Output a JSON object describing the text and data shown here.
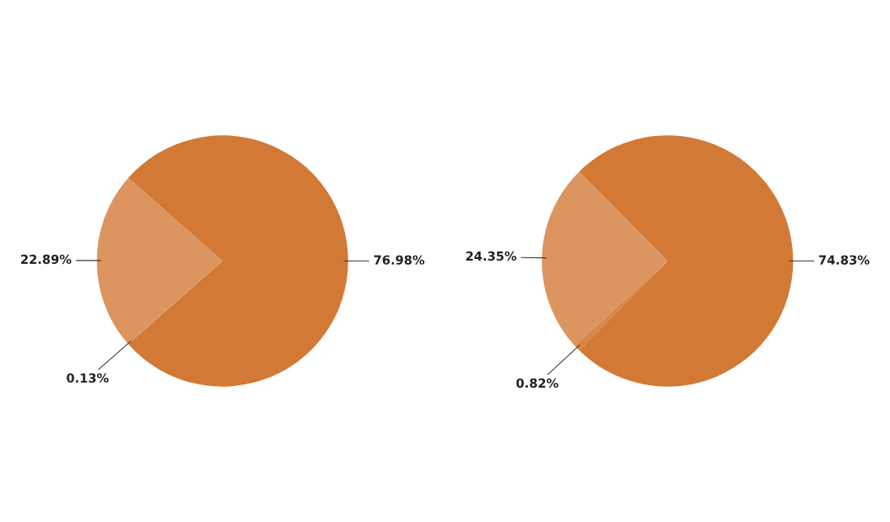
{
  "chart_data": [
    {
      "type": "pie",
      "categories": [
        null,
        null,
        null
      ],
      "values": [
        76.98,
        22.89,
        0.13
      ],
      "colors": [
        "#d27936",
        "#dc955f",
        "#d8864a"
      ],
      "value_labels": [
        "76.98%",
        "22.89%",
        "0.13%"
      ]
    },
    {
      "type": "pie",
      "categories": [
        null,
        null,
        null
      ],
      "values": [
        74.83,
        24.35,
        0.82
      ],
      "colors": [
        "#d27936",
        "#dc955f",
        "#d8864a"
      ],
      "value_labels": [
        "74.83%",
        "24.35%",
        "0.82%"
      ]
    }
  ]
}
